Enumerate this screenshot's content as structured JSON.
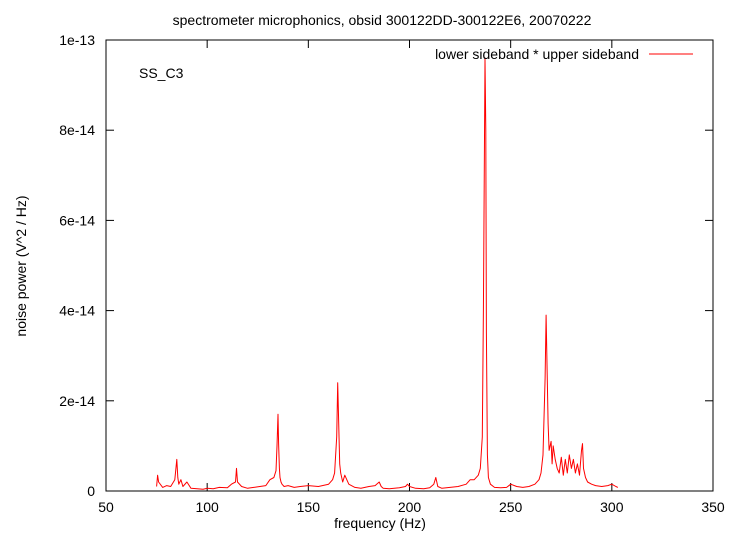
{
  "chart_data": {
    "type": "line",
    "title": "spectrometer microphonics, obsid 300122DD-300122E6, 20070222",
    "xlabel": "frequency (Hz)",
    "ylabel": "noise power (V^2 / Hz)",
    "xlim": [
      50,
      350
    ],
    "ylim": [
      0,
      1e-13
    ],
    "x_ticks": [
      50,
      100,
      150,
      200,
      250,
      300,
      350
    ],
    "x_tick_labels": [
      "50",
      "100",
      "150",
      "200",
      "250",
      "300",
      "350"
    ],
    "y_ticks": [
      0,
      2e-14,
      4e-14,
      6e-14,
      8e-14,
      1e-13
    ],
    "y_tick_labels": [
      "0",
      "2e-14",
      "4e-14",
      "6e-14",
      "8e-14",
      "1e-13"
    ],
    "grid": false,
    "legend_position": "top-right",
    "annotation": "SS_C3",
    "series": [
      {
        "name": "lower sideband * upper sideband",
        "color": "#ff0000",
        "x": [
          75,
          75.5,
          76,
          78,
          80,
          82,
          84,
          85,
          85.5,
          86,
          87,
          88,
          90,
          92,
          95,
          98,
          100,
          103,
          106,
          110,
          112,
          114,
          114.5,
          115,
          117,
          120,
          123,
          126,
          129,
          131,
          133,
          134,
          134.5,
          135,
          135.3,
          135.7,
          136,
          136.5,
          137,
          138,
          140,
          143,
          146,
          150,
          155,
          160,
          162,
          163,
          164,
          164.5,
          165,
          165.5,
          166,
          167,
          168,
          170,
          173,
          176,
          180,
          183,
          185,
          186,
          187,
          190,
          195,
          198,
          199,
          200,
          203,
          207,
          210,
          212,
          213,
          214,
          216,
          220,
          224,
          228,
          230,
          232,
          234,
          235,
          236,
          236.5,
          237,
          237.3,
          237.7,
          238,
          238.5,
          239,
          240,
          242,
          245,
          248,
          250,
          253,
          256,
          259,
          262,
          264,
          265,
          266,
          267,
          267.5,
          268,
          268.5,
          269,
          270,
          270.5,
          271,
          272,
          273,
          274,
          275,
          276,
          277,
          278,
          279,
          280,
          281,
          282,
          283,
          284,
          285,
          285.5,
          286,
          287,
          288,
          290,
          292,
          295,
          298,
          300,
          302,
          303
        ],
        "y": [
          1e-15,
          3.5e-15,
          2e-15,
          8e-16,
          1.2e-15,
          1e-15,
          2.5e-15,
          7e-15,
          3e-15,
          1.5e-15,
          2.5e-15,
          1e-15,
          2e-15,
          6e-16,
          5e-16,
          4e-16,
          6e-16,
          5e-16,
          8e-16,
          7e-16,
          1.5e-15,
          2e-15,
          5e-15,
          2e-15,
          1e-15,
          6e-16,
          8e-16,
          1e-15,
          1.2e-15,
          2.5e-15,
          3e-15,
          4.5e-15,
          1e-14,
          1.7e-14,
          1.05e-14,
          5e-15,
          3e-15,
          2e-15,
          1.5e-15,
          1e-15,
          1.2e-15,
          8e-16,
          1e-15,
          1.2e-15,
          1e-15,
          1.5e-15,
          2.5e-15,
          4e-15,
          1.2e-14,
          2.4e-14,
          1.5e-14,
          6e-15,
          4e-15,
          2e-15,
          3.5e-15,
          1.5e-15,
          8e-16,
          6e-16,
          1e-15,
          1.2e-15,
          2e-15,
          1e-15,
          6e-16,
          5e-16,
          7e-16,
          1e-15,
          1.5e-15,
          1e-15,
          6e-16,
          5e-16,
          7e-16,
          1.5e-15,
          3e-15,
          1e-15,
          6e-16,
          8e-16,
          1e-15,
          1.5e-15,
          2.5e-15,
          2.5e-15,
          3.5e-15,
          5e-15,
          1.2e-14,
          4e-14,
          7.5e-14,
          9.6e-14,
          8e-14,
          3.5e-14,
          8e-15,
          3e-15,
          1.5e-15,
          8e-16,
          7e-16,
          8e-16,
          1.5e-15,
          1e-15,
          8e-16,
          1e-15,
          1.5e-15,
          2.5e-15,
          4e-15,
          8e-15,
          2.5e-14,
          3.9e-14,
          2.7e-14,
          1.5e-14,
          9e-15,
          1.1e-14,
          6e-15,
          1e-14,
          7e-15,
          5e-15,
          4e-15,
          7.5e-15,
          3.5e-15,
          7e-15,
          4e-15,
          8e-15,
          5e-15,
          7e-15,
          4e-15,
          6e-15,
          3.5e-15,
          9e-15,
          1.05e-14,
          5e-15,
          3e-15,
          2e-15,
          1.5e-15,
          1.2e-15,
          1e-15,
          1.2e-15,
          1.5e-15,
          1e-15,
          8e-16
        ]
      }
    ]
  }
}
